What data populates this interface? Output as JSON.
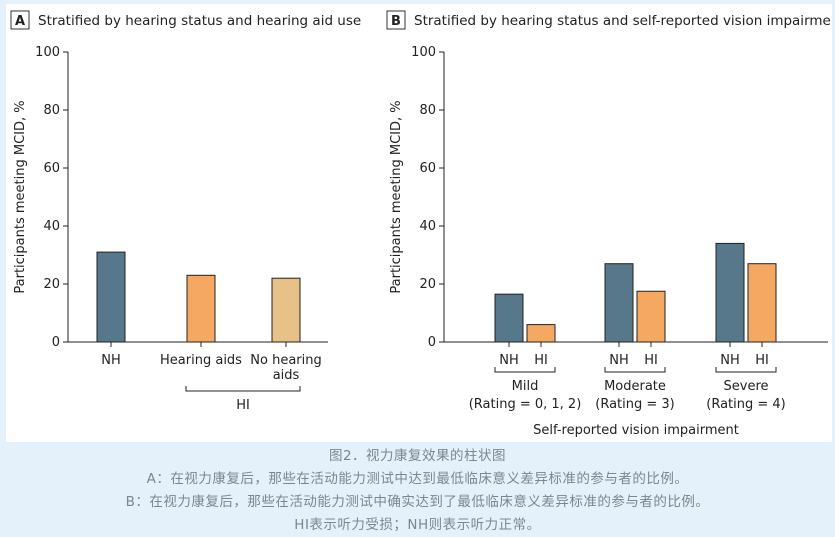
{
  "colors": {
    "nh": "#57788a",
    "hearing_aids": "#f5a862",
    "no_hearing_aids": "#e6c289",
    "axis": "#222222"
  },
  "chart_data": [
    {
      "panel_letter": "A",
      "type": "bar",
      "title": "Stratified by hearing status and hearing aid use",
      "ylabel": "Participants meeting MCID, %",
      "ylim": [
        0,
        100
      ],
      "yticks": [
        0,
        20,
        40,
        60,
        80,
        100
      ],
      "categories": [
        "NH",
        "Hearing aids",
        "No hearing aids"
      ],
      "category_lines": [
        [
          "NH"
        ],
        [
          "Hearing aids"
        ],
        [
          "No hearing",
          "aids"
        ]
      ],
      "values": [
        31,
        23,
        22
      ],
      "group_label": "HI",
      "grid": false
    },
    {
      "panel_letter": "B",
      "type": "bar",
      "title": "Stratified by hearing status and self-reported vision impairment",
      "ylabel": "Participants meeting MCID, %",
      "xlabel": "Self-reported vision impairment",
      "ylim": [
        0,
        100
      ],
      "yticks": [
        0,
        20,
        40,
        60,
        80,
        100
      ],
      "groups": [
        {
          "name": "Mild",
          "rating": "(Rating = 0, 1, 2)"
        },
        {
          "name": "Moderate",
          "rating": "(Rating = 3)"
        },
        {
          "name": "Severe",
          "rating": "(Rating = 4)"
        }
      ],
      "series": [
        {
          "name": "NH",
          "values": [
            16.5,
            27,
            34
          ]
        },
        {
          "name": "HI",
          "values": [
            6,
            17.5,
            27
          ]
        }
      ],
      "grid": false
    }
  ],
  "caption": {
    "title": "图2．视力康复效果的柱状图",
    "line_a": "A：在视力康复后，那些在活动能力测试中达到最低临床意义差异标准的参与者的比例。",
    "line_b": "B：在视力康复后，那些在活动能力测试中确实达到了最低临床意义差异标准的参与者的比例。",
    "line_c": "HI表示听力受损；NH则表示听力正常。"
  }
}
